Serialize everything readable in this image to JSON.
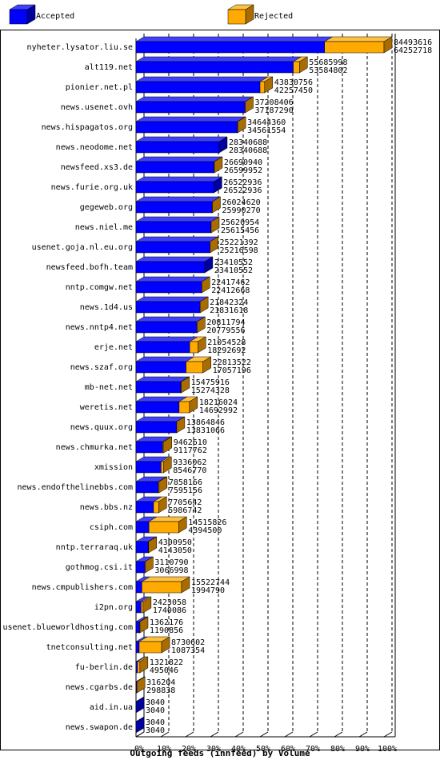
{
  "chart_data": {
    "type": "bar",
    "orientation": "horizontal",
    "stacked": true,
    "title": "Outgoing feeds (innfeed) by Volume",
    "categories": [
      "nyheter.lysator.liu.se",
      "alt119.net",
      "pionier.net.pl",
      "news.usenet.ovh",
      "news.hispagatos.org",
      "news.neodome.net",
      "newsfeed.xs3.de",
      "news.furie.org.uk",
      "gegeweb.org",
      "news.niel.me",
      "usenet.goja.nl.eu.org",
      "newsfeed.bofh.team",
      "nntp.comgw.net",
      "news.1d4.us",
      "news.nntp4.net",
      "erje.net",
      "news.szaf.org",
      "mb-net.net",
      "weretis.net",
      "news.quux.org",
      "news.chmurka.net",
      "xmission",
      "news.endofthelinebbs.com",
      "news.bbs.nz",
      "csiph.com",
      "nntp.terraraq.uk",
      "gothmog.csi.it",
      "news.cmpublishers.com",
      "i2pn.org",
      "usenet.blueworldhosting.com",
      "tnetconsulting.net",
      "fu-berlin.de",
      "news.cgarbs.de",
      "aid.in.ua",
      "news.swapon.de"
    ],
    "offered": [
      84493616,
      55685998,
      43830756,
      37208406,
      34644360,
      28340688,
      26690940,
      26522936,
      26024620,
      25620954,
      25221392,
      23410552,
      22417462,
      21842324,
      20811794,
      21054528,
      22813522,
      15475916,
      18216024,
      13864846,
      9462610,
      9336062,
      7858166,
      7705642,
      14515826,
      4300950,
      3110790,
      15522744,
      2423058,
      1362176,
      8730602,
      1321822,
      316204,
      3040,
      3040
    ],
    "series": [
      {
        "name": "Accepted",
        "color": "#0000ff",
        "values": [
          64252718,
          53584802,
          42257450,
          37187290,
          34561554,
          28340688,
          26599952,
          26522936,
          25990270,
          25615456,
          25216598,
          23410552,
          22412668,
          21831618,
          20779556,
          18292692,
          17057196,
          15274328,
          14692992,
          13831066,
          9117762,
          8546770,
          7595156,
          5986742,
          4394500,
          4143050,
          3066998,
          1994790,
          1740086,
          1190856,
          1087354,
          495046,
          298838,
          3040,
          3040
        ]
      },
      {
        "name": "Rejected",
        "color": "#ffaa00",
        "values": [
          20240898,
          2101196,
          1573306,
          21116,
          82806,
          0,
          90988,
          0,
          34350,
          5498,
          4794,
          0,
          4794,
          10706,
          32238,
          2761836,
          5756326,
          201588,
          3523032,
          33780,
          344848,
          789292,
          263010,
          1718900,
          10121326,
          157900,
          43792,
          13527954,
          682972,
          171320,
          7643248,
          826776,
          17366,
          0,
          0
        ]
      }
    ],
    "xlim": [
      0,
      84493616
    ],
    "xticks": [
      {
        "value": 0,
        "label": "0%"
      },
      {
        "value": 8449361.6,
        "label": "10%"
      },
      {
        "value": 16898723.2,
        "label": "20%"
      },
      {
        "value": 25348084.8,
        "label": "30%"
      },
      {
        "value": 33797446.4,
        "label": "40%"
      },
      {
        "value": 42246808,
        "label": "50%"
      },
      {
        "value": 50696169.6,
        "label": "60%"
      },
      {
        "value": 59145531.2,
        "label": "70%"
      },
      {
        "value": 67594892.8,
        "label": "80%"
      },
      {
        "value": 76044254.4,
        "label": "90%"
      },
      {
        "value": 84493616,
        "label": "100%"
      }
    ],
    "grid": true
  }
}
